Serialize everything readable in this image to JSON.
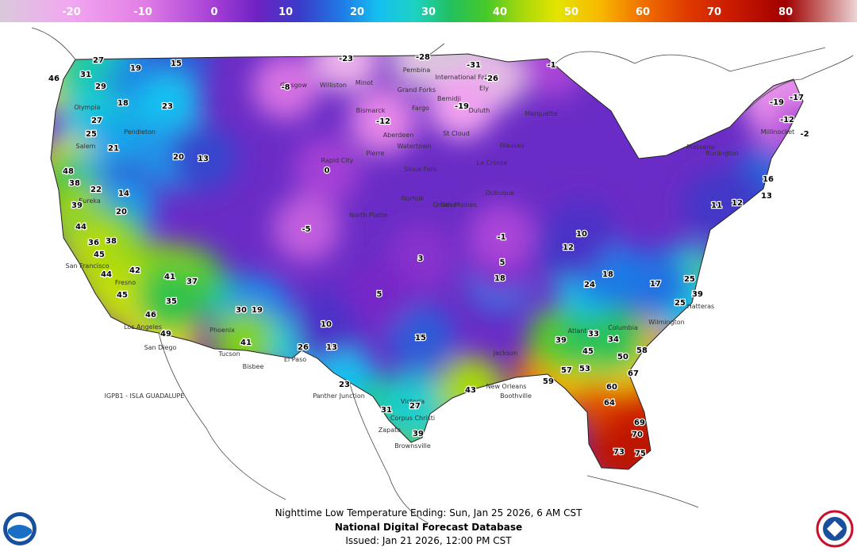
{
  "colorbar": {
    "range": [
      -30,
      90
    ],
    "ticks": [
      -20,
      -10,
      0,
      10,
      20,
      30,
      40,
      50,
      60,
      70,
      80
    ],
    "stops": [
      {
        "value": -30,
        "color": "#d9c9dc"
      },
      {
        "value": -20,
        "color": "#f2a6f0"
      },
      {
        "value": -10,
        "color": "#e27ee6"
      },
      {
        "value": 0,
        "color": "#a43fd6"
      },
      {
        "value": 6,
        "color": "#6e22c4"
      },
      {
        "value": 12,
        "color": "#3a3cc8"
      },
      {
        "value": 18,
        "color": "#1f7ce6"
      },
      {
        "value": 23,
        "color": "#15c0f0"
      },
      {
        "value": 28,
        "color": "#1dd2c4"
      },
      {
        "value": 33,
        "color": "#22c060"
      },
      {
        "value": 38,
        "color": "#46c82a"
      },
      {
        "value": 43,
        "color": "#a6d80c"
      },
      {
        "value": 48,
        "color": "#e4e400"
      },
      {
        "value": 54,
        "color": "#f8b800"
      },
      {
        "value": 60,
        "color": "#f07000"
      },
      {
        "value": 66,
        "color": "#e03c00"
      },
      {
        "value": 72,
        "color": "#cc1c00"
      },
      {
        "value": 80,
        "color": "#a00000"
      },
      {
        "value": 90,
        "color": "#ecd4d4"
      }
    ]
  },
  "temperatures": [
    46,
    27,
    19,
    15,
    31,
    29,
    18,
    23,
    27,
    25,
    21,
    20,
    13,
    48,
    38,
    22,
    14,
    39,
    20,
    44,
    36,
    38,
    45,
    44,
    42,
    45,
    46,
    49,
    37,
    41,
    35,
    30,
    19,
    41,
    26,
    13,
    23,
    31,
    39,
    27,
    43,
    59,
    57,
    53,
    60,
    67,
    64,
    69,
    70,
    73,
    75,
    58,
    50,
    45,
    39,
    33,
    34,
    25,
    39,
    25,
    17,
    13,
    16,
    12,
    11,
    -23,
    -28,
    -31,
    -1,
    -26,
    -19,
    -17,
    -19,
    -12,
    -2,
    -8,
    -12,
    0,
    -5,
    10,
    15,
    18,
    24,
    18,
    12,
    10,
    5,
    -1,
    3,
    5
  ],
  "cities": [
    "Olympia",
    "Salem",
    "Pendleton",
    "Eureka",
    "San Francisco",
    "Fresno",
    "Los Angeles",
    "San Diego",
    "Phoenix",
    "Tucson",
    "Bisbee",
    "El Paso",
    "Panther Junction",
    "Zapata",
    "Brownsville",
    "Corpus Christi",
    "Victoria",
    "New Orleans",
    "Boothville",
    "Jackson",
    "Atlanta",
    "Columbia",
    "Wilmington",
    "Hatteras",
    "Glasgow",
    "Williston",
    "Minot",
    "Pembina",
    "Grand Forks",
    "International Falls",
    "Bemidji",
    "Ely",
    "Bismarck",
    "Fargo",
    "Duluth",
    "Marquette",
    "Aberdeen",
    "Watertown",
    "St Cloud",
    "Wausau",
    "Rapid City",
    "Pierre",
    "Sioux Falls",
    "La Crosse",
    "Norfolk",
    "North Platte",
    "Omaha",
    "Des Moines",
    "Dubuque",
    "Massena",
    "Burlington",
    "Millinocket"
  ],
  "station_note": "IGPB1 - ISLA GUADALUPE",
  "footer": {
    "product": "Nighttime Low Temperature Ending: Sun, Jan 25 2026, 6 AM CST",
    "source": "National Digital Forecast Database",
    "issued": "Issued: Jan 21 2026, 12:00 PM CST"
  }
}
